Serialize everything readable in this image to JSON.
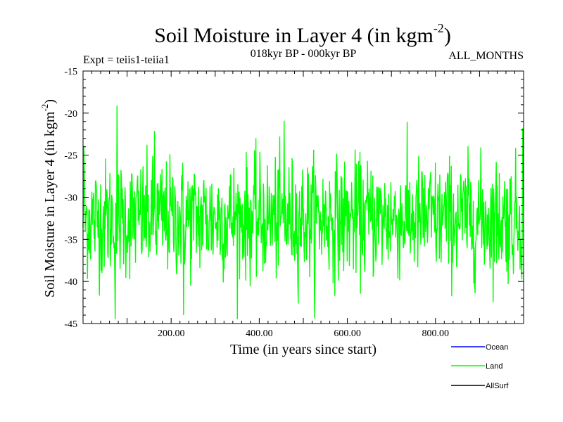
{
  "chart_data": {
    "type": "line",
    "title": "Soil Moisture in Layer 4 (in kgm",
    "title_exponent": "-2",
    "title_close": ")",
    "subtitle_left": "Expt = teiis1-teiia1",
    "subtitle_center": "018kyr BP - 000kyr BP",
    "subtitle_right": "ALL_MONTHS",
    "xlabel": "Time (in years since start)",
    "ylabel": "Soil Moisture in Layer 4 (in kgm",
    "ylabel_exponent": "-2",
    "ylabel_close": ")",
    "xlim": [
      0,
      1000
    ],
    "ylim": [
      -45,
      -15
    ],
    "x_ticks": [
      "200.00",
      "400.00",
      "600.00",
      "800.00"
    ],
    "y_ticks": [
      "-15",
      "-20",
      "-25",
      "-30",
      "-35",
      "-40",
      "-45"
    ],
    "grid": false,
    "legend_position": "bottom-right",
    "series": [
      {
        "name": "Ocean",
        "color": "#0000ff",
        "values": []
      },
      {
        "name": "Land",
        "color": "#00ff00",
        "x_start": 0,
        "x_end": 1000,
        "samples": 1000,
        "mean": -32.5,
        "min": -44.5,
        "max": -19.1,
        "approx_std": 3.5
      },
      {
        "name": "AllSurf",
        "color": "#000000",
        "values": []
      }
    ]
  }
}
